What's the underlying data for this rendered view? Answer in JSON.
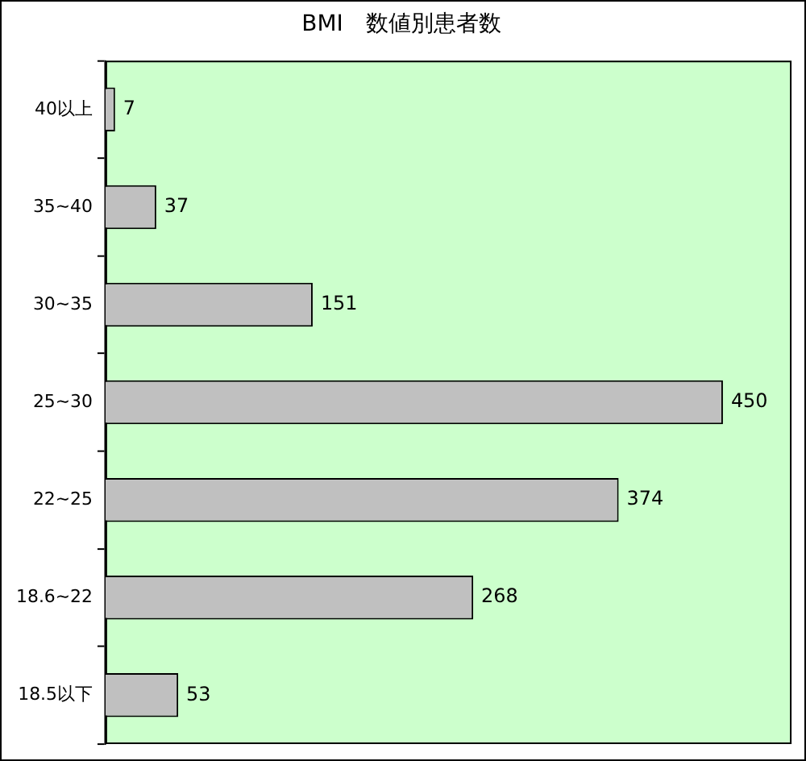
{
  "chart_data": {
    "type": "bar",
    "orientation": "horizontal",
    "title": "BMI　数値別患者数",
    "categories": [
      "40以上",
      "35~40",
      "30~35",
      "25~30",
      "22~25",
      "18.6~22",
      "18.5以下"
    ],
    "values": [
      7,
      37,
      151,
      450,
      374,
      268,
      53
    ],
    "color": "#c0c0c0",
    "data_labels": true,
    "grid": false,
    "legend": false
  }
}
